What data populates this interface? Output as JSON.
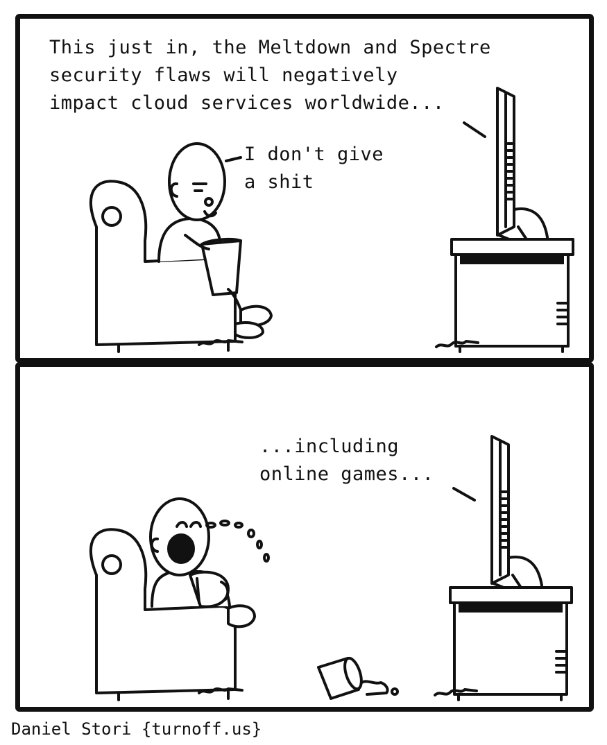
{
  "panels": [
    {
      "tv_caption": "This just in, the Meltdown and Spectre\nsecurity flaws will negatively\nimpact cloud services worldwide...",
      "speech": "I don't give\na shit"
    },
    {
      "tv_caption": "...including\nonline games..."
    }
  ],
  "credit": "Daniel Stori {turnoff.us}",
  "colors": {
    "ink": "#111111",
    "paper": "#ffffff"
  }
}
